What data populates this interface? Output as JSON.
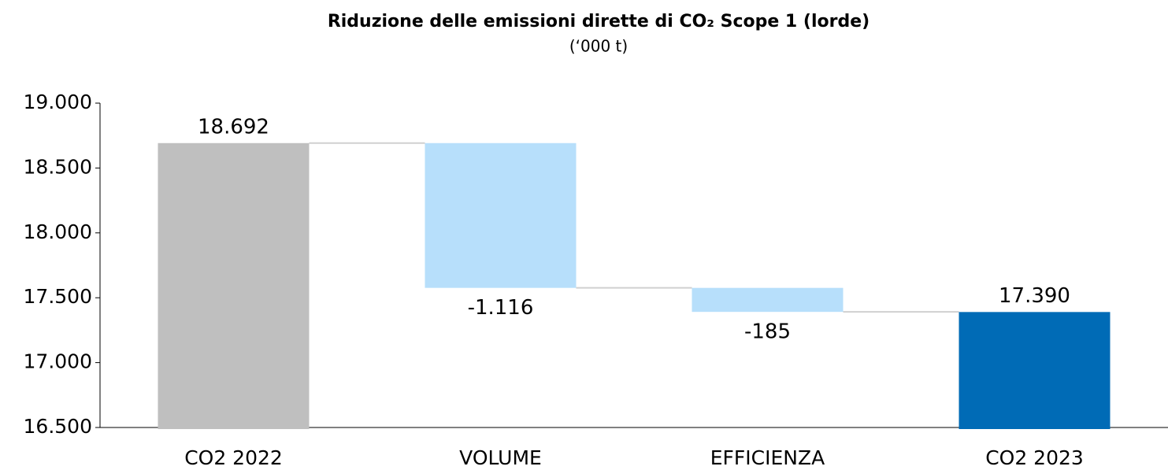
{
  "chart_data": {
    "type": "waterfall",
    "title": "Riduzione delle emissioni dirette di CO₂ Scope 1 (lorde)",
    "subtitle": "(‘000 t)",
    "categories": [
      "CO2 2022",
      "VOLUME",
      "EFFICIENZA",
      "CO2 2023"
    ],
    "values": [
      18692,
      -1116,
      -185,
      17390
    ],
    "value_labels": [
      "18.692",
      "-1.116",
      "-185",
      "17.390"
    ],
    "measure": [
      "total",
      "relative",
      "relative",
      "total"
    ],
    "colors": [
      "#bfbfbf",
      "#b7dffb",
      "#b7dffb",
      "#006bb6"
    ],
    "ylim": [
      16500,
      19000
    ],
    "yticks": [
      {
        "value": 16500,
        "label": "16.500"
      },
      {
        "value": 17000,
        "label": "17.000"
      },
      {
        "value": 17500,
        "label": "17.500"
      },
      {
        "value": 18000,
        "label": "18.000"
      },
      {
        "value": 18500,
        "label": "18.500"
      },
      {
        "value": 19000,
        "label": "19.000"
      }
    ]
  }
}
